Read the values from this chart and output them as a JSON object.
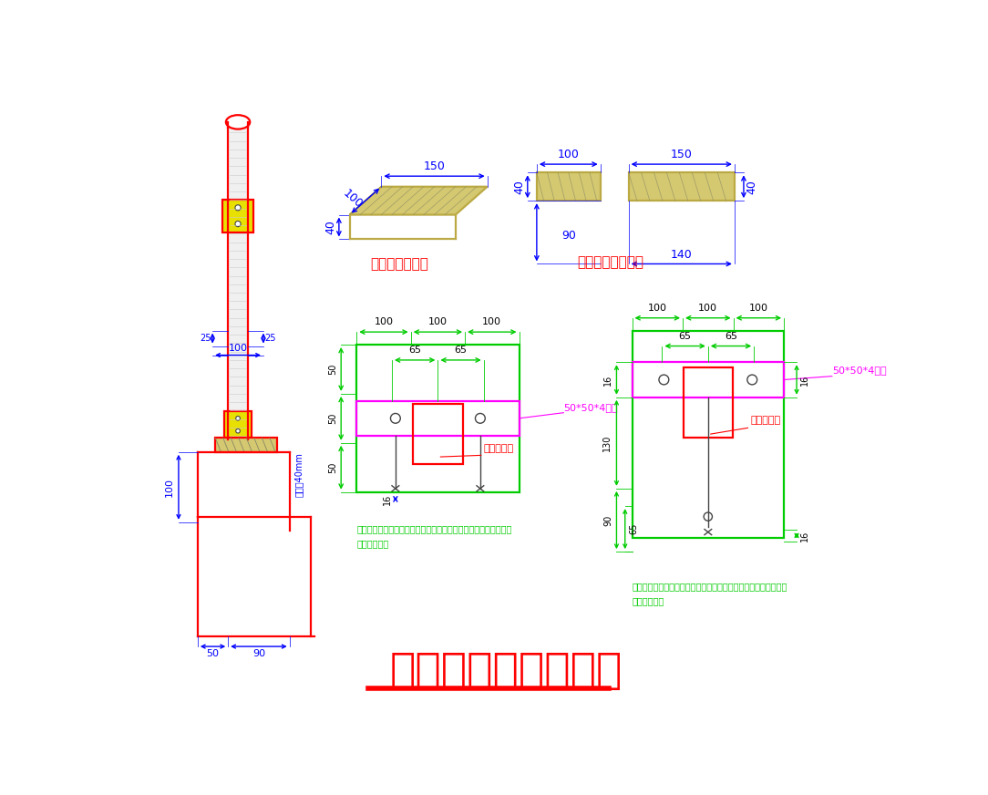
{
  "title": "栏杆预埋件节点大样",
  "label1": "栏杆预埋件大样",
  "label2": "栏杆预埋件剖面图",
  "label_angle1": "50*50*4角钢",
  "label_angle2": "50*50*4角钢",
  "label_slot1": "栏杆预压槽",
  "label_slot2": "栏杆预压槽",
  "note1": "说明：此大样为阳台反边平直接栏杆预埋件前视如图方案。角钢与",
  "note1b": "预埋件焺接。",
  "note2": "说明：此大样为阳台反边转角接栏杆预埋件角视如图方案。角钢与",
  "note2b": "预埋件焺接。",
  "width_text": "栏杆宽40mm",
  "blue": "#0000ff",
  "red": "#ff0000",
  "green": "#00cc00",
  "magenta": "#ff00ff",
  "yellow_fill": "#d4c870",
  "black": "#000000",
  "darkgray": "#444444",
  "hatch_color": "#888866"
}
